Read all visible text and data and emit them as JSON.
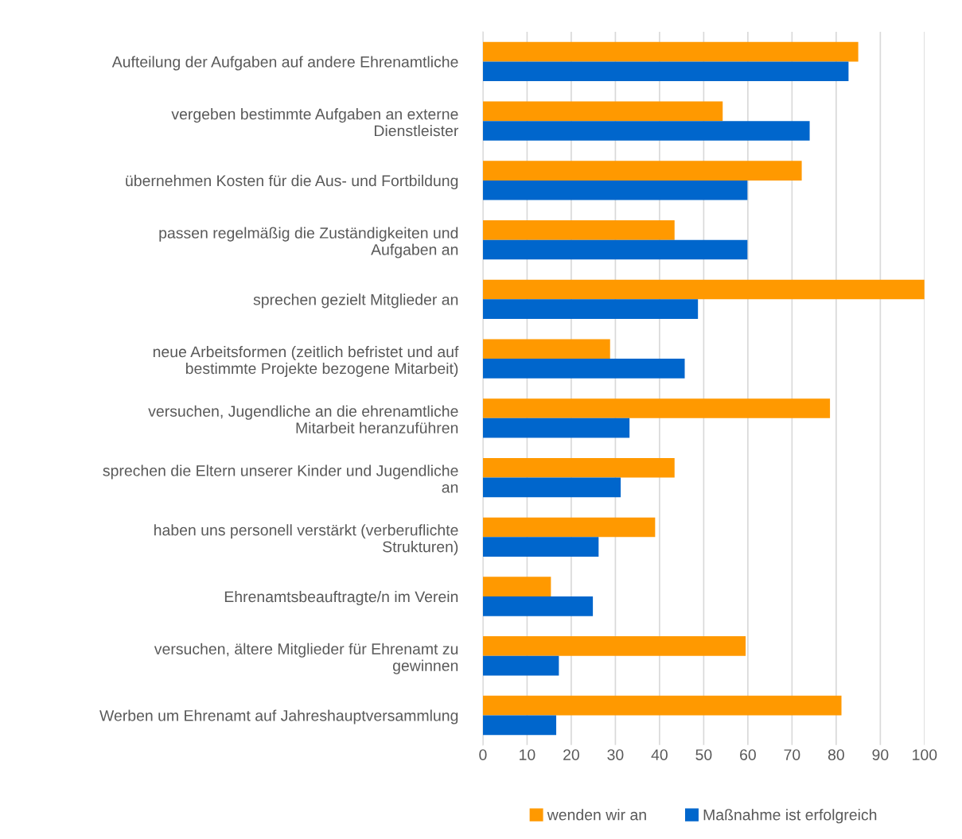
{
  "chart_data": {
    "type": "bar",
    "orientation": "horizontal",
    "categories": [
      "Aufteilung der Aufgaben auf andere Ehrenamtliche",
      "vergeben bestimmte Aufgaben an externe\nDienstleister",
      "übernehmen Kosten für die Aus- und Fortbildung",
      "passen regelmäßig die Zuständigkeiten und\nAufgaben an",
      "sprechen gezielt Mitglieder an",
      "neue Arbeitsformen (zeitlich befristet und auf\nbestimmte Projekte bezogene Mitarbeit)",
      "versuchen, Jugendliche an die ehrenamtliche\nMitarbeit heranzuführen",
      "sprechen die Eltern unserer Kinder und Jugendliche\nan",
      "haben uns personell verstärkt (verberuflichte\nStrukturen)",
      "Ehrenamtsbeauftragte/n im Verein",
      "versuchen, ältere Mitglieder für Ehrenamt zu\ngewinnen",
      "Werben um Ehrenamt auf Jahreshauptversammlung"
    ],
    "series": [
      {
        "name": "wenden wir an",
        "color": "#ff9900",
        "values": [
          85.0,
          54.3,
          72.2,
          43.4,
          100,
          28.8,
          78.6,
          43.4,
          39.0,
          15.4,
          59.5,
          81.2
        ]
      },
      {
        "name": "Maßnahme ist erfolgreich",
        "color": "#0066cc",
        "values": [
          82.8,
          74.0,
          59.9,
          59.9,
          48.7,
          45.7,
          33.2,
          31.2,
          26.2,
          24.9,
          17.2,
          16.6
        ]
      }
    ],
    "xlim": [
      0,
      100
    ],
    "xticks": [
      0,
      10,
      20,
      30,
      40,
      50,
      60,
      70,
      80,
      90,
      100
    ],
    "grid": "x",
    "legend": "bottom"
  }
}
